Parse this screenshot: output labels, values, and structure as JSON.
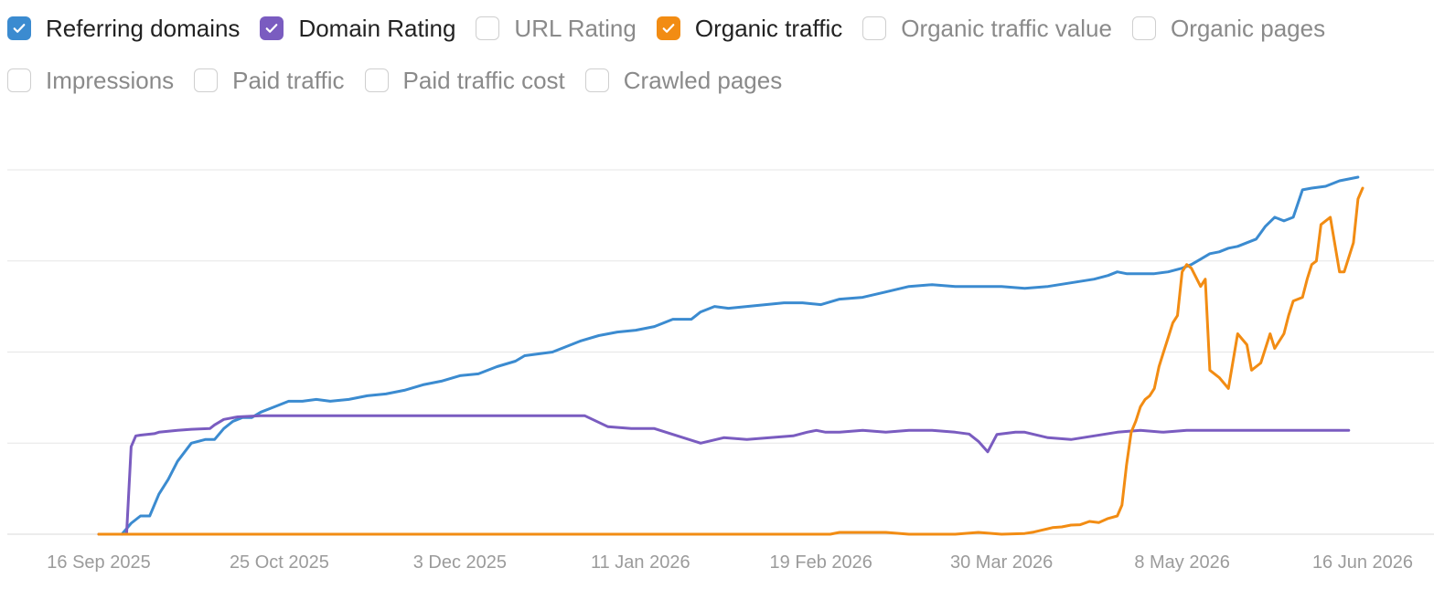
{
  "toggles": [
    {
      "label": "Referring domains",
      "checked": true,
      "color": "#3b8bd0"
    },
    {
      "label": "Domain Rating",
      "checked": true,
      "color": "#7a5cc0"
    },
    {
      "label": "URL Rating",
      "checked": false,
      "color": "#cfcfcf"
    },
    {
      "label": "Organic traffic",
      "checked": true,
      "color": "#f28c13"
    },
    {
      "label": "Organic traffic value",
      "checked": false,
      "color": "#cfcfcf"
    },
    {
      "label": "Organic pages",
      "checked": false,
      "color": "#cfcfcf"
    },
    {
      "label": "Impressions",
      "checked": false,
      "color": "#cfcfcf"
    },
    {
      "label": "Paid traffic",
      "checked": false,
      "color": "#cfcfcf"
    },
    {
      "label": "Paid traffic cost",
      "checked": false,
      "color": "#cfcfcf"
    },
    {
      "label": "Crawled pages",
      "checked": false,
      "color": "#cfcfcf"
    }
  ],
  "chart_data": {
    "type": "line",
    "x_tick_labels": [
      "16 Sep 2025",
      "25 Oct 2025",
      "3 Dec 2025",
      "11 Jan 2026",
      "19 Feb 2026",
      "30 Mar 2026",
      "8 May 2026",
      "16 Jun 2026"
    ],
    "x_tick_days": [
      0,
      39,
      78,
      117,
      156,
      195,
      234,
      273
    ],
    "xlim_days": [
      0,
      273
    ],
    "ylim": [
      0,
      100
    ],
    "y_gridlines": [
      0,
      25,
      50,
      75,
      100
    ],
    "grid": true,
    "series": [
      {
        "name": "Referring domains",
        "color": "#3b8bd0",
        "x": [
          5,
          7,
          9,
          11,
          13,
          15,
          17,
          20,
          23,
          25,
          27,
          29,
          31,
          33,
          35,
          38,
          41,
          44,
          47,
          50,
          54,
          58,
          62,
          66,
          70,
          74,
          78,
          82,
          86,
          90,
          92,
          95,
          98,
          101,
          104,
          108,
          112,
          116,
          120,
          124,
          128,
          130,
          133,
          136,
          140,
          144,
          148,
          152,
          156,
          160,
          165,
          170,
          175,
          180,
          185,
          190,
          195,
          200,
          205,
          210,
          215,
          218,
          220,
          222,
          224,
          228,
          231,
          234,
          236,
          238,
          240,
          242,
          244,
          246,
          248,
          250,
          252,
          254,
          256,
          258,
          260,
          262,
          265,
          268,
          270,
          272
        ],
        "y": [
          0,
          3,
          5,
          5,
          11,
          15,
          20,
          25,
          26,
          26,
          29,
          31,
          32,
          32,
          33.5,
          35,
          36.5,
          36.5,
          37,
          36.5,
          37,
          38,
          38.5,
          39.5,
          41,
          42,
          43.5,
          44,
          46,
          47.5,
          49,
          49.5,
          50,
          51.5,
          53,
          54.5,
          55.5,
          56,
          57,
          59,
          59,
          61,
          62.5,
          62,
          62.5,
          63,
          63.5,
          63.5,
          63,
          64.5,
          65,
          66.5,
          68,
          68.5,
          68,
          68,
          68,
          67.5,
          68,
          69,
          70,
          71,
          72,
          71.5,
          71.5,
          71.5,
          72,
          73,
          74,
          75.5,
          77,
          77.5,
          78.5,
          79,
          80,
          81,
          84.5,
          87,
          86,
          87,
          94.5,
          95,
          95.5,
          97,
          97.5,
          98
        ]
      },
      {
        "name": "Domain Rating",
        "color": "#7a5cc0",
        "x": [
          0,
          6,
          7,
          8,
          9,
          12,
          13,
          17,
          20,
          24,
          25,
          27,
          30,
          35,
          40,
          50,
          60,
          65,
          70,
          80,
          85,
          90,
          94,
          95,
          100,
          105,
          110,
          115,
          120,
          125,
          130,
          135,
          140,
          145,
          150,
          153,
          155,
          157,
          160,
          165,
          170,
          175,
          180,
          185,
          188,
          190,
          192,
          194,
          198,
          200,
          205,
          210,
          215,
          220,
          225,
          230,
          235,
          240,
          245,
          250,
          255,
          260,
          265,
          270
        ],
        "y": [
          0,
          0,
          24,
          27,
          27.2,
          27.6,
          28,
          28.5,
          28.8,
          29,
          30,
          31.5,
          32.2,
          32.5,
          32.5,
          32.5,
          32.5,
          32.5,
          32.5,
          32.5,
          32.5,
          32.5,
          32.5,
          32.5,
          32.5,
          32.5,
          29.5,
          29,
          29,
          27,
          25,
          26.5,
          26,
          26.5,
          27,
          28,
          28.5,
          28,
          28,
          28.5,
          28,
          28.5,
          28.5,
          28,
          27.5,
          25.5,
          22.6,
          27.4,
          28,
          28,
          26.5,
          26,
          27,
          28,
          28.5,
          28,
          28.5,
          28.5,
          28.5,
          28.5,
          28.5,
          28.5,
          28.5,
          28.5
        ]
      },
      {
        "name": "Organic traffic",
        "color": "#f28c13",
        "x": [
          0,
          20,
          40,
          60,
          80,
          100,
          120,
          140,
          158,
          160,
          170,
          175,
          180,
          185,
          190,
          195,
          200,
          202,
          204,
          206,
          208,
          210,
          212,
          214,
          216,
          218,
          220,
          221,
          222,
          223,
          224,
          225,
          226,
          227,
          228,
          229,
          230,
          231,
          232,
          233,
          234,
          235,
          236,
          238,
          239,
          240,
          242,
          244,
          246,
          248,
          249,
          251,
          253,
          254,
          256,
          257,
          258,
          260,
          261,
          262,
          263,
          264,
          266,
          268,
          269,
          271,
          272,
          273
        ],
        "y": [
          0,
          0,
          0,
          0,
          0,
          0,
          0,
          0,
          0,
          0.5,
          0.5,
          0,
          0,
          0,
          0.5,
          0,
          0.2,
          0.6,
          1.2,
          1.8,
          2,
          2.5,
          2.6,
          3.5,
          3.2,
          4.3,
          5,
          8,
          19,
          28,
          31,
          35,
          37,
          38,
          40,
          46,
          50,
          54,
          58,
          60,
          72,
          74,
          73,
          68,
          70,
          45,
          43,
          40,
          55,
          52,
          45,
          47,
          55,
          51,
          55,
          60,
          64,
          65,
          70,
          74,
          75,
          85,
          87,
          72,
          72,
          80,
          92,
          95
        ]
      }
    ]
  }
}
